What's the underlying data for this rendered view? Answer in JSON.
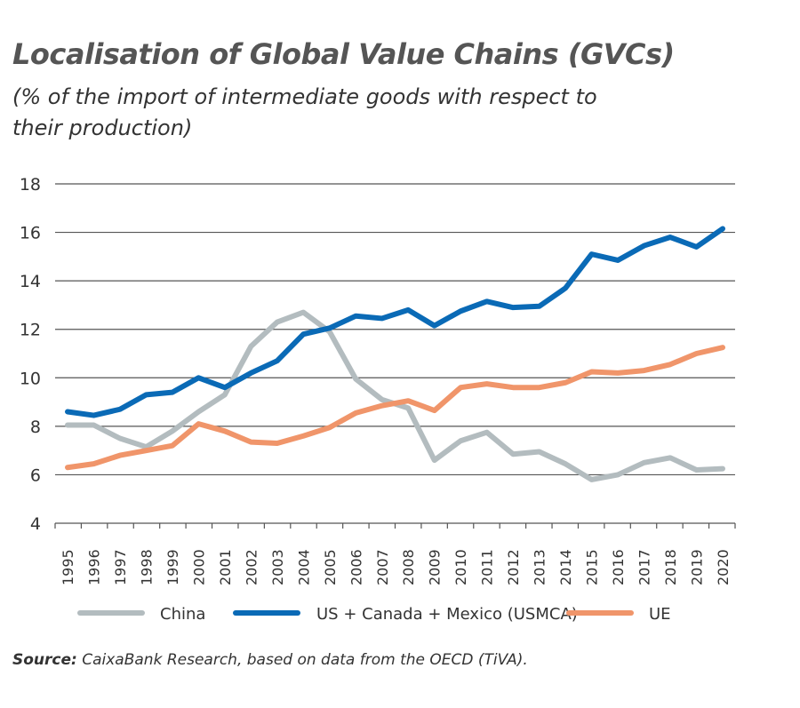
{
  "chart_data": {
    "type": "line",
    "title": "Localisation of Global Value Chains (GVCs)",
    "subtitle": "(% of the import of intermediate goods with respect to their production)",
    "xlabel": "",
    "ylabel": "",
    "ylim": [
      4,
      18
    ],
    "yticks": [
      4,
      6,
      8,
      10,
      12,
      14,
      16,
      18
    ],
    "grid": "horizontal",
    "legend": "bottom",
    "x": [
      "1995",
      "1996",
      "1997",
      "1998",
      "1999",
      "2000",
      "2001",
      "2002",
      "2003",
      "2004",
      "2005",
      "2006",
      "2007",
      "2008",
      "2009",
      "2010",
      "2011",
      "2012",
      "2013",
      "2014",
      "2015",
      "2016",
      "2017",
      "2018",
      "2019",
      "2020"
    ],
    "series": [
      {
        "name": "China",
        "color": "#b3bcbf",
        "values": [
          8.05,
          8.05,
          7.5,
          7.15,
          7.8,
          8.6,
          9.3,
          11.3,
          12.3,
          12.7,
          11.9,
          9.95,
          9.1,
          8.75,
          6.6,
          7.4,
          7.75,
          6.85,
          6.95,
          6.45,
          5.8,
          6.0,
          6.5,
          6.7,
          6.2,
          6.25
        ]
      },
      {
        "name": "US + Canada + Mexico (USMCA)",
        "color": "#0a6ab6",
        "values": [
          8.6,
          8.45,
          8.7,
          9.3,
          9.4,
          10.0,
          9.6,
          10.2,
          10.7,
          11.8,
          12.05,
          12.55,
          12.45,
          12.8,
          12.15,
          12.75,
          13.15,
          12.9,
          12.95,
          13.7,
          15.1,
          14.85,
          15.45,
          15.8,
          15.4,
          16.15
        ]
      },
      {
        "name": "UE",
        "color": "#f0956a",
        "values": [
          6.3,
          6.45,
          6.8,
          7.0,
          7.2,
          8.1,
          7.8,
          7.35,
          7.3,
          7.6,
          7.95,
          8.55,
          8.85,
          9.05,
          8.65,
          9.6,
          9.75,
          9.6,
          9.6,
          9.8,
          10.25,
          10.2,
          10.3,
          10.55,
          11.0,
          11.25
        ]
      }
    ]
  },
  "source": {
    "label": "Source:",
    "text": "CaixaBank Research, based on data from the OECD (TiVA)."
  }
}
